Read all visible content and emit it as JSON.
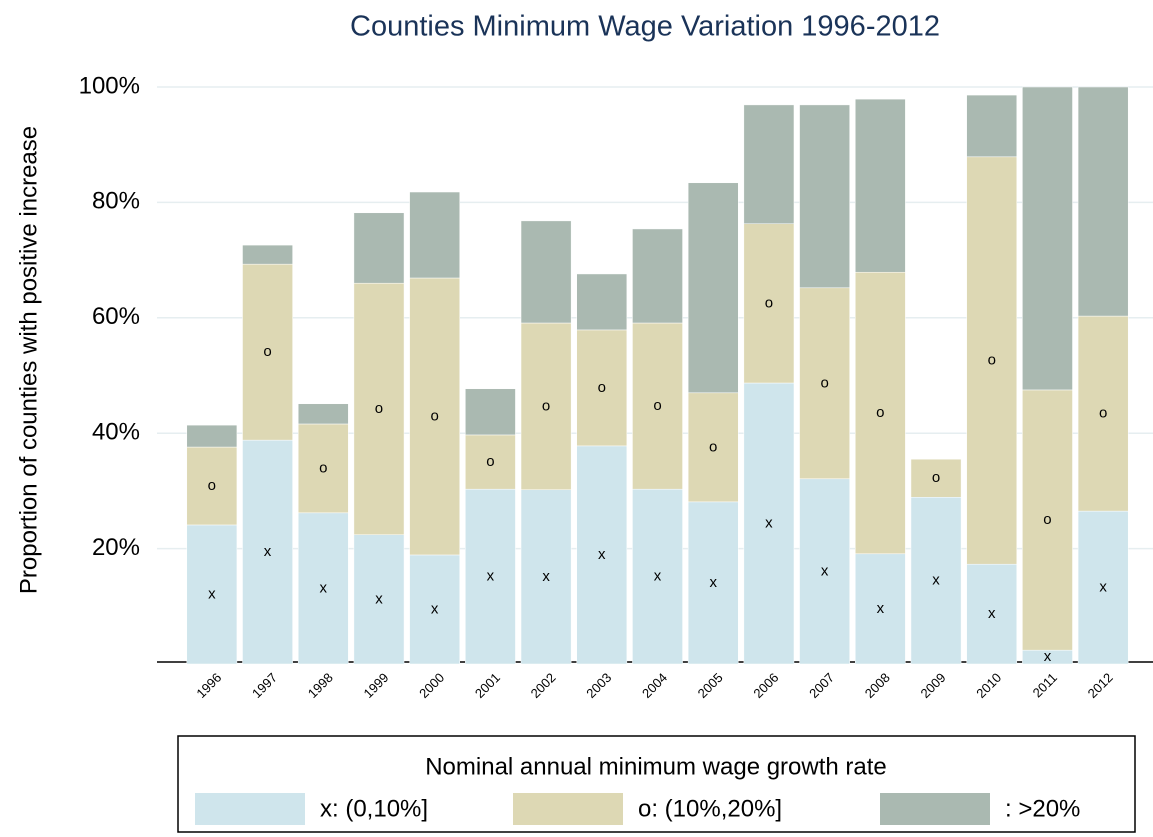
{
  "chart_data": {
    "type": "stacked_bar",
    "title": "Counties Minimum Wage Variation 1996-2012",
    "y_label": "Proportion of counties with positive increase",
    "legend_title": "Nominal annual minimum wage growth rate",
    "categories": [
      "1996",
      "1997",
      "1998",
      "1999",
      "2000",
      "2001",
      "2002",
      "2003",
      "2004",
      "2005",
      "2006",
      "2007",
      "2008",
      "2009",
      "2010",
      "2011",
      "2012"
    ],
    "series": [
      {
        "name": "x: (0,10%]",
        "marker": "x",
        "color": "#cfe5ec",
        "values": [
          24.1,
          38.8,
          26.2,
          22.4,
          18.9,
          30.3,
          30.2,
          37.8,
          30.3,
          28.1,
          48.7,
          32.1,
          19.1,
          28.9,
          17.3,
          2.4,
          26.5
        ]
      },
      {
        "name": "o: (10%,20%]",
        "marker": "o",
        "color": "#ddd8b4",
        "values": [
          13.5,
          30.5,
          15.4,
          43.6,
          48.0,
          9.4,
          28.9,
          20.1,
          28.8,
          18.9,
          27.6,
          33.1,
          48.8,
          6.6,
          70.6,
          45.1,
          33.8
        ]
      },
      {
        "name": ": >20%",
        "color": "#aab9b1",
        "values": [
          3.8,
          3.3,
          3.5,
          12.2,
          14.9,
          8.0,
          17.7,
          9.7,
          16.3,
          36.4,
          20.6,
          31.7,
          30.0,
          0,
          10.7,
          52.5,
          39.7
        ]
      }
    ],
    "ylim": [
      0,
      100
    ],
    "yticks": [
      {
        "value": 20,
        "label": "20%"
      },
      {
        "value": 40,
        "label": "40%"
      },
      {
        "value": 60,
        "label": "60%"
      },
      {
        "value": 80,
        "label": "80%"
      },
      {
        "value": 100,
        "label": "100%"
      }
    ],
    "grid": true
  }
}
